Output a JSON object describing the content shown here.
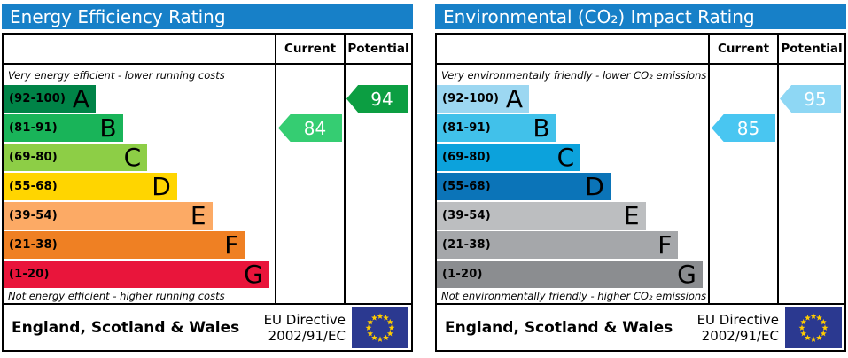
{
  "styles": {
    "header_blue": "#1780c8",
    "eu_flag_blue": "#2b3990",
    "star_yellow": "#ffcc00"
  },
  "chart_data": [
    {
      "type": "bar",
      "variant": "epc-rating",
      "title": "Energy Efficiency Rating",
      "columns": {
        "current": "Current",
        "potential": "Potential"
      },
      "top_caption": "Very energy efficient - lower running costs",
      "bottom_caption": "Not energy efficient - higher running costs",
      "bands": [
        {
          "range": "(92-100)",
          "letter": "A",
          "color": "#008347",
          "width_pct": 34
        },
        {
          "range": "(81-91)",
          "letter": "B",
          "color": "#19b459",
          "width_pct": 44
        },
        {
          "range": "(69-80)",
          "letter": "C",
          "color": "#8dce46",
          "width_pct": 53
        },
        {
          "range": "(55-68)",
          "letter": "D",
          "color": "#ffd500",
          "width_pct": 64
        },
        {
          "range": "(39-54)",
          "letter": "E",
          "color": "#fcaa65",
          "width_pct": 77
        },
        {
          "range": "(21-38)",
          "letter": "F",
          "color": "#ef8023",
          "width_pct": 89
        },
        {
          "range": "(1-20)",
          "letter": "G",
          "color": "#e9153b",
          "width_pct": 98
        }
      ],
      "current": {
        "value": 84,
        "band": "B",
        "band_index": 1,
        "arrow_color": "#35cd72"
      },
      "potential": {
        "value": 94,
        "band": "A",
        "band_index": 0,
        "arrow_color": "#0c9e42"
      },
      "footer": {
        "region": "England, Scotland & Wales",
        "directive_line1": "EU Directive",
        "directive_line2": "2002/91/EC"
      }
    },
    {
      "type": "bar",
      "variant": "epc-rating",
      "title": "Environmental (CO₂) Impact Rating",
      "columns": {
        "current": "Current",
        "potential": "Potential"
      },
      "top_caption": "Very environmentally friendly - lower CO₂ emissions",
      "bottom_caption": "Not environmentally friendly - higher CO₂ emissions",
      "bands": [
        {
          "range": "(92-100)",
          "letter": "A",
          "color": "#9cd7f1",
          "width_pct": 34
        },
        {
          "range": "(81-91)",
          "letter": "B",
          "color": "#41c1ea",
          "width_pct": 44
        },
        {
          "range": "(69-80)",
          "letter": "C",
          "color": "#0ca2dc",
          "width_pct": 53
        },
        {
          "range": "(55-68)",
          "letter": "D",
          "color": "#0b74b8",
          "width_pct": 64
        },
        {
          "range": "(39-54)",
          "letter": "E",
          "color": "#bcbec0",
          "width_pct": 77
        },
        {
          "range": "(21-38)",
          "letter": "F",
          "color": "#a5a7aa",
          "width_pct": 89
        },
        {
          "range": "(1-20)",
          "letter": "G",
          "color": "#8b8d90",
          "width_pct": 98
        }
      ],
      "current": {
        "value": 85,
        "band": "B",
        "band_index": 1,
        "arrow_color": "#49c6f1"
      },
      "potential": {
        "value": 95,
        "band": "A",
        "band_index": 0,
        "arrow_color": "#8ed7f4"
      },
      "footer": {
        "region": "England, Scotland & Wales",
        "directive_line1": "EU Directive",
        "directive_line2": "2002/91/EC"
      }
    }
  ]
}
